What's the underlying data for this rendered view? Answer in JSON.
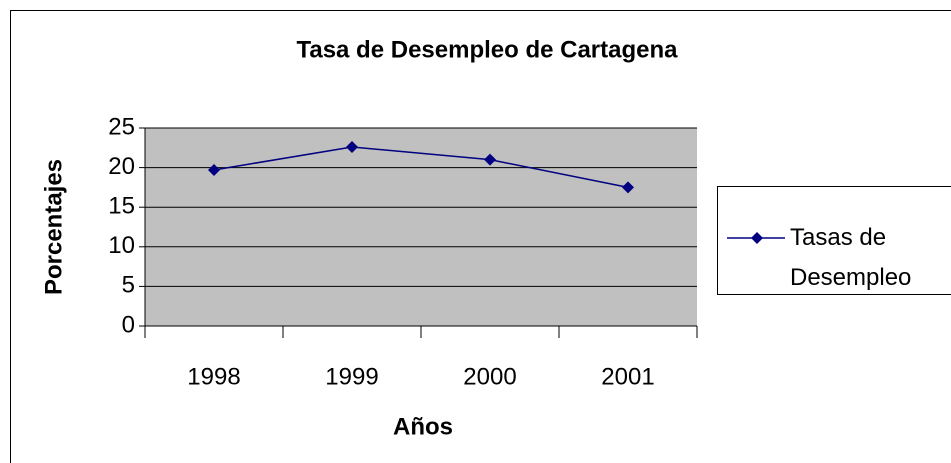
{
  "chart_data": {
    "type": "line",
    "title": "Tasa de Desempleo de Cartagena",
    "x_label": "Años",
    "y_label": "Porcentajes",
    "categories": [
      "1998",
      "1999",
      "2000",
      "2001"
    ],
    "series": [
      {
        "name": "Tasas de Desempleo",
        "color": "#000080",
        "values": [
          19.7,
          22.6,
          21.0,
          17.5
        ]
      }
    ],
    "ylim": [
      0,
      25
    ],
    "yticks": [
      0,
      5,
      10,
      15,
      20,
      25
    ],
    "grid": true,
    "legend": "right",
    "plot_background": "#c0c0c0"
  }
}
